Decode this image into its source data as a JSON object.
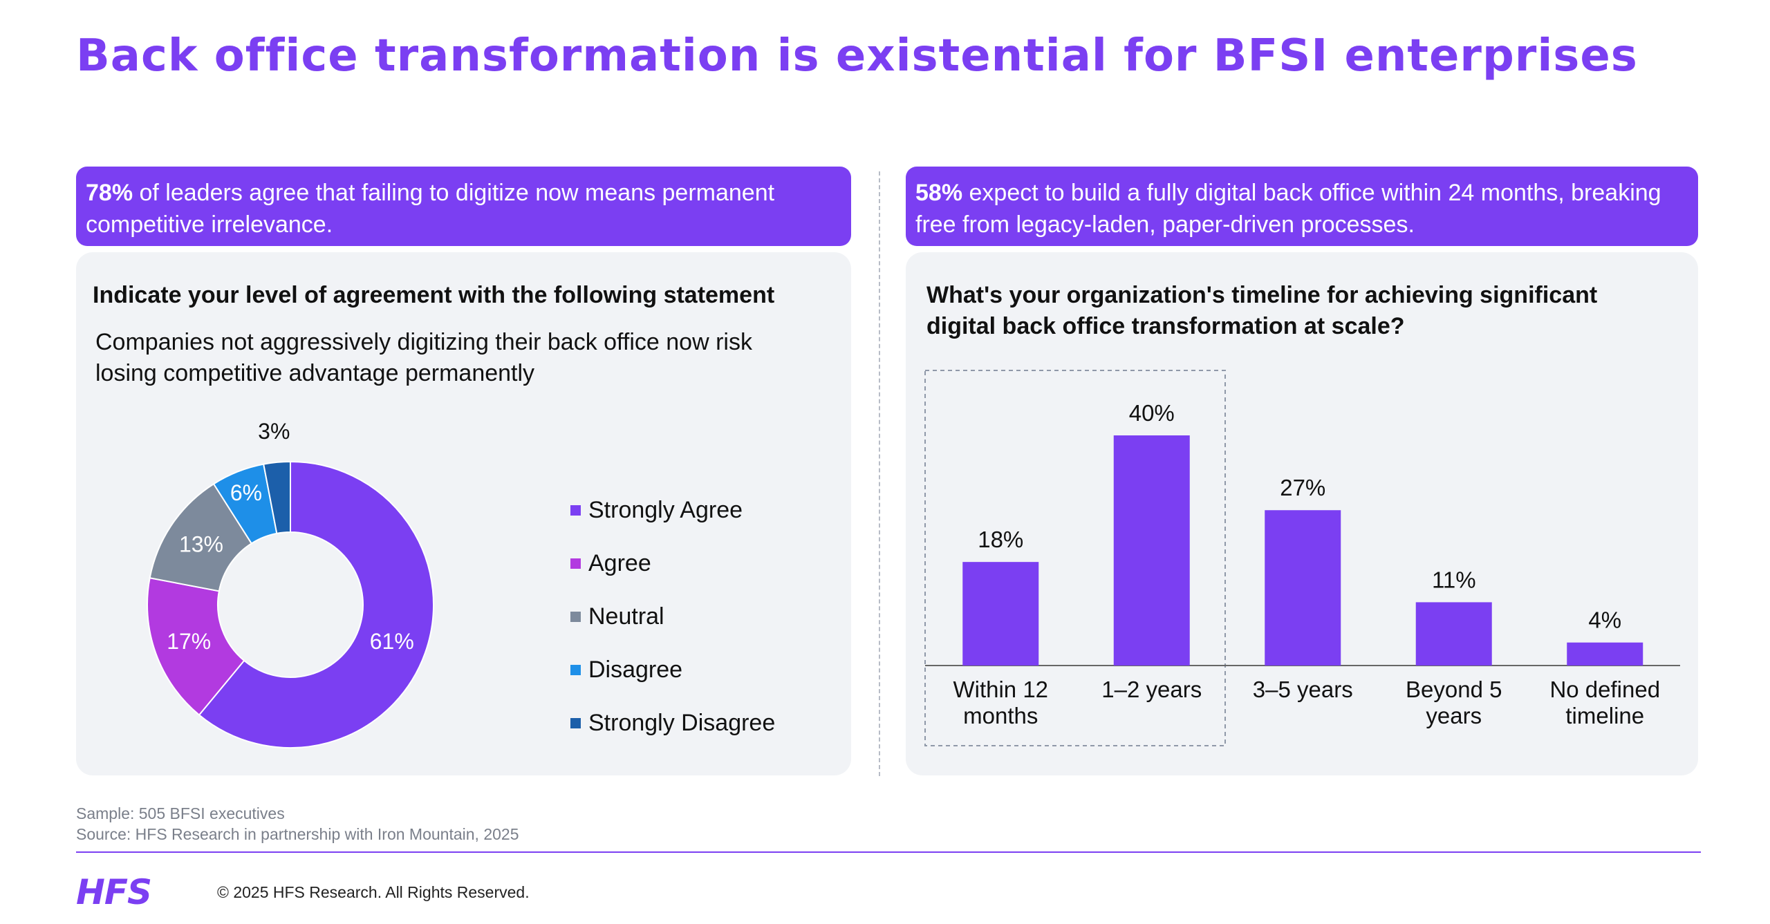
{
  "title": "Back office transformation is existential for BFSI enterprises",
  "left": {
    "banner_highlight": "78%",
    "banner_text": " of leaders agree that failing to digitize now means permanent competitive irrelevance.",
    "question": "Indicate your level of agreement with the following statement",
    "statement": "Companies not aggressively digitizing their back office now risk losing competitive advantage permanently"
  },
  "right": {
    "banner_highlight": "58%",
    "banner_text": " expect to build a fully digital back office within 24 months, breaking free from legacy-laden, paper-driven processes.",
    "question": "What's your organization's timeline for achieving significant digital back office transformation at scale?"
  },
  "chart_data": [
    {
      "type": "pie",
      "subtype": "donut",
      "categories": [
        "Strongly Agree",
        "Agree",
        "Neutral",
        "Disagree",
        "Strongly Disagree"
      ],
      "values": [
        61,
        17,
        13,
        6,
        3
      ],
      "labels": [
        "61%",
        "17%",
        "13%",
        "6%",
        "3%"
      ],
      "colors": [
        "#7b3ff2",
        "#b23ae0",
        "#7d8a9c",
        "#1e8fe8",
        "#1c5faa"
      ],
      "legend": "right"
    },
    {
      "type": "bar",
      "categories": [
        "Within 12 months",
        "1–2 years",
        "3–5 years",
        "Beyond 5 years",
        "No defined timeline"
      ],
      "values": [
        18,
        40,
        27,
        11,
        4
      ],
      "labels": [
        "18%",
        "40%",
        "27%",
        "11%",
        "4%"
      ],
      "color": "#7b3ff2",
      "ylim": [
        0,
        40
      ],
      "highlighted_categories": [
        "Within 12 months",
        "1–2 years"
      ]
    }
  ],
  "footer": {
    "sample": "Sample: 505 BFSI executives",
    "source": "Source: HFS Research in partnership with Iron Mountain, 2025",
    "logo": "HFS",
    "copyright": "© 2025 HFS Research. All Rights Reserved."
  }
}
